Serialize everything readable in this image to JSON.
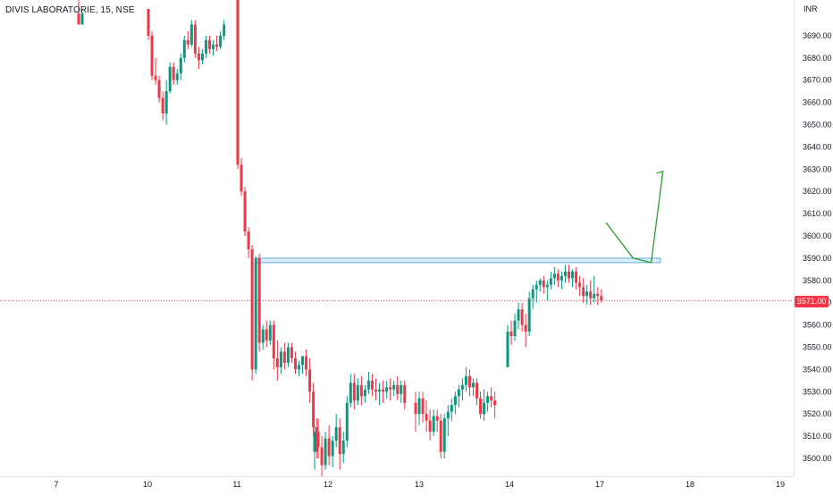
{
  "header": {
    "symbol": "DIVIS LABORATORIE, 15, NSE",
    "currency": "INR"
  },
  "chart_data": {
    "type": "candlestick",
    "y_ticks": [
      3500,
      3510,
      3520,
      3530,
      3540,
      3550,
      3560,
      3570,
      3580,
      3590,
      3600,
      3610,
      3620,
      3630,
      3640,
      3650,
      3660,
      3670,
      3680,
      3690
    ],
    "y_tick_labels": [
      "3500.00",
      "3510.00",
      "3520.00",
      "3530.00",
      "3540.00",
      "3550.00",
      "3560.00",
      "3570.00",
      "3580.00",
      "3590.00",
      "3600.00",
      "3610.00",
      "3620.00",
      "3630.00",
      "3640.00",
      "3650.00",
      "3660.00",
      "3670.00",
      "3680.00",
      "3690.00"
    ],
    "x_labels": [
      "7",
      "10",
      "11",
      "12",
      "13",
      "14",
      "17",
      "18",
      "19"
    ],
    "last_price": 3571.0,
    "last_price_label": "3571.00",
    "up_color": "#089981",
    "down_color": "#f23645",
    "zone": {
      "from": 3588,
      "to": 3590,
      "color": "#bfe0f5"
    },
    "arrow_color": "#2e9d2e",
    "arrow_path": [
      [
        3606,
        17.07
      ],
      [
        3590,
        17.37
      ],
      [
        3588,
        17.57
      ],
      [
        3629,
        17.7
      ]
    ],
    "sessions": [
      {
        "day": "7",
        "candles": [
          [
            3700,
            3712,
            3695,
            3695
          ],
          [
            3695,
            3702,
            3695,
            3700
          ]
        ]
      },
      {
        "day": "10",
        "candles": [
          [
            3702,
            3702,
            3688,
            3690
          ],
          [
            3690,
            3692,
            3670,
            3672
          ],
          [
            3672,
            3680,
            3668,
            3670
          ],
          [
            3670,
            3672,
            3660,
            3662
          ],
          [
            3662,
            3665,
            3652,
            3655
          ],
          [
            3655,
            3670,
            3650,
            3665
          ],
          [
            3665,
            3678,
            3664,
            3676
          ],
          [
            3676,
            3678,
            3668,
            3670
          ],
          [
            3670,
            3675,
            3668,
            3673
          ],
          [
            3673,
            3682,
            3670,
            3680
          ],
          [
            3680,
            3690,
            3678,
            3688
          ],
          [
            3688,
            3692,
            3684,
            3686
          ],
          [
            3686,
            3697,
            3685,
            3695
          ],
          [
            3695,
            3697,
            3680,
            3682
          ],
          [
            3682,
            3685,
            3675,
            3679
          ],
          [
            3679,
            3684,
            3677,
            3682
          ],
          [
            3682,
            3690,
            3680,
            3688
          ],
          [
            3688,
            3690,
            3682,
            3684
          ],
          [
            3684,
            3688,
            3681,
            3686
          ],
          [
            3686,
            3690,
            3683,
            3685
          ],
          [
            3685,
            3692,
            3684,
            3690
          ],
          [
            3690,
            3697,
            3688,
            3695
          ]
        ]
      },
      {
        "day": "11",
        "candles": [
          [
            3712,
            3712,
            3630,
            3632
          ],
          [
            3632,
            3635,
            3618,
            3620
          ],
          [
            3620,
            3622,
            3600,
            3602
          ],
          [
            3602,
            3604,
            3590,
            3594
          ],
          [
            3594,
            3596,
            3535,
            3540
          ],
          [
            3540,
            3591,
            3538,
            3590
          ],
          [
            3590,
            3592,
            3548,
            3552
          ],
          [
            3552,
            3560,
            3549,
            3558
          ],
          [
            3558,
            3562,
            3550,
            3553
          ],
          [
            3553,
            3562,
            3551,
            3560
          ],
          [
            3560,
            3562,
            3540,
            3545
          ],
          [
            3545,
            3553,
            3535,
            3541
          ],
          [
            3541,
            3550,
            3538,
            3548
          ],
          [
            3548,
            3552,
            3540,
            3543
          ],
          [
            3543,
            3552,
            3541,
            3550
          ],
          [
            3550,
            3552,
            3543,
            3545
          ],
          [
            3545,
            3548,
            3538,
            3540
          ],
          [
            3540,
            3544,
            3537,
            3542
          ],
          [
            3542,
            3546,
            3538,
            3546
          ],
          [
            3546,
            3549,
            3537,
            3540
          ],
          [
            3540,
            3545,
            3525,
            3530
          ],
          [
            3530,
            3534,
            3510,
            3514
          ],
          [
            3514,
            3518,
            3500,
            3503
          ]
        ]
      },
      {
        "day": "12",
        "candles": [
          [
            3503,
            3515,
            3495,
            3512
          ],
          [
            3512,
            3518,
            3500,
            3505
          ],
          [
            3505,
            3510,
            3492,
            3497
          ],
          [
            3497,
            3512,
            3495,
            3509
          ],
          [
            3509,
            3515,
            3497,
            3501
          ],
          [
            3501,
            3510,
            3496,
            3508
          ],
          [
            3508,
            3520,
            3505,
            3514
          ],
          [
            3514,
            3518,
            3495,
            3502
          ],
          [
            3502,
            3512,
            3498,
            3508
          ],
          [
            3508,
            3528,
            3505,
            3525
          ],
          [
            3525,
            3538,
            3523,
            3534
          ],
          [
            3534,
            3538,
            3522,
            3526
          ],
          [
            3526,
            3536,
            3524,
            3533
          ],
          [
            3533,
            3537,
            3524,
            3528
          ],
          [
            3528,
            3533,
            3525,
            3531
          ],
          [
            3531,
            3539,
            3529,
            3535
          ],
          [
            3535,
            3538,
            3528,
            3531
          ],
          [
            3531,
            3536,
            3526,
            3530
          ],
          [
            3530,
            3534,
            3524,
            3531
          ],
          [
            3531,
            3535,
            3525,
            3530
          ],
          [
            3530,
            3535,
            3527,
            3532
          ],
          [
            3532,
            3536,
            3526,
            3531
          ],
          [
            3531,
            3535,
            3528,
            3533
          ],
          [
            3533,
            3537,
            3526,
            3529
          ],
          [
            3529,
            3535,
            3525,
            3533
          ],
          [
            3533,
            3535,
            3522,
            3525
          ]
        ]
      },
      {
        "day": "13",
        "candles": [
          [
            3525,
            3530,
            3512,
            3520
          ],
          [
            3520,
            3530,
            3515,
            3527
          ],
          [
            3527,
            3530,
            3516,
            3520
          ],
          [
            3520,
            3526,
            3512,
            3517
          ],
          [
            3517,
            3522,
            3508,
            3512
          ],
          [
            3512,
            3522,
            3510,
            3519
          ],
          [
            3519,
            3522,
            3512,
            3517
          ],
          [
            3517,
            3520,
            3500,
            3503
          ],
          [
            3503,
            3520,
            3500,
            3518
          ],
          [
            3518,
            3524,
            3510,
            3521
          ],
          [
            3521,
            3527,
            3517,
            3524
          ],
          [
            3524,
            3530,
            3520,
            3528
          ],
          [
            3528,
            3533,
            3523,
            3531
          ],
          [
            3531,
            3536,
            3526,
            3533
          ],
          [
            3533,
            3541,
            3530,
            3537
          ],
          [
            3537,
            3540,
            3528,
            3532
          ],
          [
            3532,
            3536,
            3528,
            3534
          ],
          [
            3534,
            3536,
            3524,
            3527
          ],
          [
            3527,
            3530,
            3518,
            3520
          ],
          [
            3520,
            3531,
            3517,
            3525
          ],
          [
            3525,
            3530,
            3521,
            3528
          ],
          [
            3528,
            3532,
            3523,
            3526
          ],
          [
            3526,
            3530,
            3518,
            3524
          ]
        ]
      },
      {
        "day": "14",
        "candles": [
          [
            3541,
            3560,
            3541,
            3557
          ],
          [
            3557,
            3562,
            3551,
            3555
          ],
          [
            3555,
            3565,
            3553,
            3562
          ],
          [
            3562,
            3570,
            3558,
            3567
          ],
          [
            3567,
            3570,
            3557,
            3560
          ],
          [
            3560,
            3565,
            3550,
            3557
          ],
          [
            3557,
            3575,
            3555,
            3572
          ],
          [
            3572,
            3578,
            3567,
            3576
          ],
          [
            3576,
            3580,
            3570,
            3578
          ],
          [
            3578,
            3581,
            3575,
            3580
          ],
          [
            3580,
            3582,
            3574,
            3577
          ],
          [
            3577,
            3580,
            3571,
            3578
          ],
          [
            3578,
            3584,
            3576,
            3581
          ],
          [
            3581,
            3586,
            3578,
            3583
          ],
          [
            3583,
            3585,
            3577,
            3580
          ],
          [
            3580,
            3584,
            3576,
            3582
          ],
          [
            3582,
            3587,
            3579,
            3584
          ],
          [
            3584,
            3587,
            3579,
            3581
          ],
          [
            3581,
            3585,
            3577,
            3584
          ],
          [
            3584,
            3586,
            3576,
            3579
          ],
          [
            3579,
            3582,
            3573,
            3577
          ],
          [
            3577,
            3581,
            3570,
            3573
          ],
          [
            3573,
            3578,
            3569,
            3575
          ],
          [
            3575,
            3580,
            3569,
            3572
          ],
          [
            3572,
            3582,
            3570,
            3574
          ],
          [
            3574,
            3577,
            3569,
            3573
          ],
          [
            3573,
            3576,
            3570,
            3571
          ]
        ]
      }
    ]
  }
}
